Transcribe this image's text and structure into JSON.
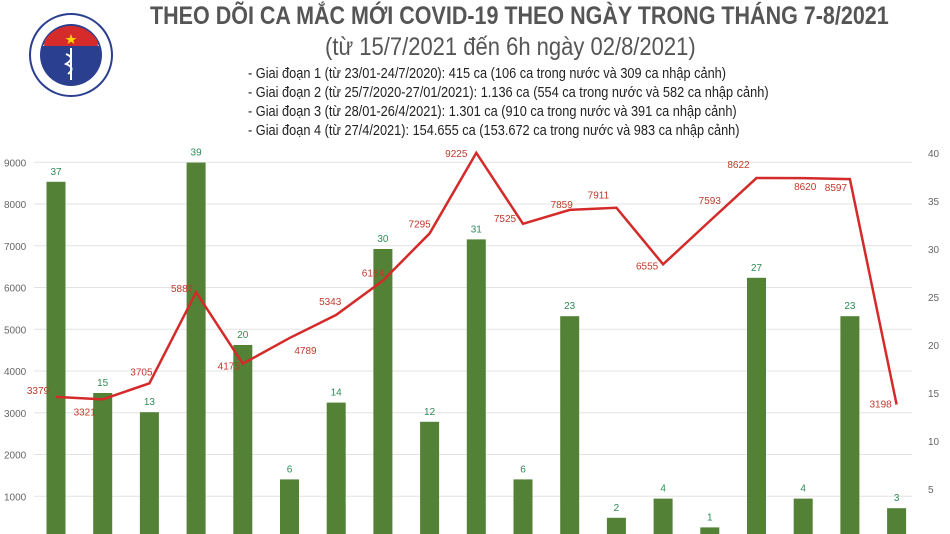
{
  "logo": {
    "text_top": "BỘ Y TẾ",
    "text_bottom": "MINISTRY OF HEALTH"
  },
  "header": {
    "title": "THEO DÕI CA MẮC MỚI COVID-19 THEO NGÀY TRONG THÁNG 7-8/2021",
    "subtitle": "(từ 15/7/2021 đến 6h ngày 02/8/2021)",
    "stages": [
      "- Giai đoạn 1 (từ 23/01-24/7/2020): 415 ca (106 ca trong nước và 309 ca nhập cảnh)",
      "- Giai đoạn 2 (từ 25/7/2020-27/01/2021): 1.136 ca (554 ca trong nước và 582 ca nhập cảnh)",
      "- Giai đoạn 3 (từ 28/01-26/4/2021): 1.301 ca (910 ca trong nước và 391 ca nhập cảnh)",
      "- Giai đoạn 4 (từ 27/4/2021): 154.655 ca (153.672 ca trong nước và 983 ca nhập cảnh)"
    ]
  },
  "chart_data": {
    "type": "bar+line",
    "title": "THEO DÕI CA MẮC MỚI COVID-19 THEO NGÀY TRONG THÁNG 7-8/2021",
    "left_axis": {
      "ticks": [
        1000,
        2000,
        3000,
        4000,
        5000,
        6000,
        7000,
        8000,
        9000
      ],
      "range": [
        0,
        9200
      ]
    },
    "right_axis": {
      "ticks": [
        5,
        10,
        15,
        20,
        25,
        30,
        35,
        40
      ],
      "range": [
        0,
        40
      ]
    },
    "grid": true,
    "series": [
      {
        "name": "bars",
        "type": "bar",
        "axis": "right",
        "color": "#538135",
        "values": [
          37,
          15,
          13,
          39,
          20,
          6,
          14,
          30,
          12,
          31,
          6,
          23,
          2,
          4,
          1,
          27,
          4,
          23,
          3
        ]
      },
      {
        "name": "line",
        "type": "line",
        "axis": "left",
        "color": "#d42a2a",
        "values": [
          3379,
          3321,
          3705,
          5887,
          4175,
          4789,
          5343,
          6164,
          7295,
          9225,
          7525,
          7859,
          7911,
          6555,
          7593,
          8622,
          8620,
          8597,
          3198
        ]
      }
    ],
    "colors": {
      "bar_label": "#2e8b57",
      "line_label": "#c0392b",
      "grid": "#e3e3e3",
      "axis_text": "#666666"
    }
  }
}
